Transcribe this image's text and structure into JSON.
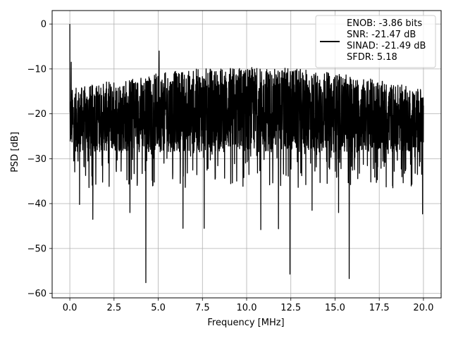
{
  "chart_data": {
    "type": "line",
    "xlabel": "Frequency [MHz]",
    "ylabel": "PSD [dB]",
    "xlim": [
      -1.0,
      21.0
    ],
    "ylim": [
      -61.0,
      3.0
    ],
    "x_ticks": [
      0.0,
      2.5,
      5.0,
      7.5,
      10.0,
      12.5,
      15.0,
      17.5,
      20.0
    ],
    "x_tick_labels": [
      "0.0",
      "2.5",
      "5.0",
      "7.5",
      "10.0",
      "12.5",
      "15.0",
      "17.5",
      "20.0"
    ],
    "y_ticks": [
      0,
      -10,
      -20,
      -30,
      -40,
      -50,
      -60
    ],
    "y_tick_labels": [
      "0",
      "−10",
      "−20",
      "−30",
      "−40",
      "−50",
      "−60"
    ],
    "grid": true,
    "legend_position": "top-right",
    "series": [
      {
        "name": "ENOB: -3.86 bits\nSNR: -21.47 dB\nSINAD: -21.49 dB\nSFDR: 5.18",
        "color": "#000000",
        "x_range": [
          0.0,
          20.0
        ],
        "floor_lower": -28.5,
        "floor_upper": -14.5,
        "upper_envelope_edges": -14.5,
        "upper_envelope_mid": -9.5,
        "notable_points": [
          {
            "x": 0.0,
            "y": 0.0
          },
          {
            "x": 0.08,
            "y": -8.5
          },
          {
            "x": 0.55,
            "y": -40.2
          },
          {
            "x": 1.3,
            "y": -43.5
          },
          {
            "x": 3.4,
            "y": -42.0
          },
          {
            "x": 4.3,
            "y": -57.6
          },
          {
            "x": 5.05,
            "y": -6.0
          },
          {
            "x": 6.4,
            "y": -45.5
          },
          {
            "x": 7.6,
            "y": -45.5
          },
          {
            "x": 10.8,
            "y": -45.8
          },
          {
            "x": 11.8,
            "y": -45.6
          },
          {
            "x": 12.45,
            "y": -55.7
          },
          {
            "x": 13.7,
            "y": -41.5
          },
          {
            "x": 15.2,
            "y": -42.0
          },
          {
            "x": 15.8,
            "y": -56.7
          },
          {
            "x": 19.95,
            "y": -42.3
          }
        ]
      }
    ]
  }
}
